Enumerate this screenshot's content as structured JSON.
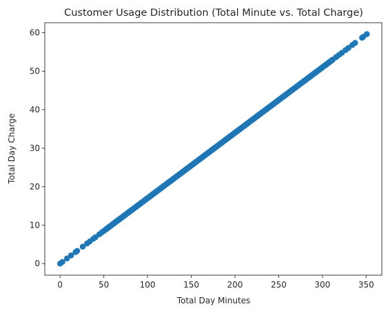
{
  "chart_data": {
    "type": "scatter",
    "title": "Customer Usage Distribution (Total Minute vs. Total Charge)",
    "xlabel": "Total Day Minutes",
    "ylabel": "Total Day Charge",
    "xlim": [
      -17.5,
      367.9
    ],
    "ylim": [
      -3.0,
      62.6
    ],
    "xticks": [
      0,
      50,
      100,
      150,
      200,
      250,
      300,
      350
    ],
    "yticks": [
      0,
      10,
      20,
      30,
      40,
      50,
      60
    ],
    "grid": false,
    "color": "#1f77b4",
    "slope": 0.17,
    "x_range": [
      0.0,
      350.8
    ],
    "sparse_points": [
      {
        "x": 0.0,
        "y": 0.0
      },
      {
        "x": 2.6,
        "y": 0.44
      },
      {
        "x": 7.9,
        "y": 1.34
      },
      {
        "x": 12.5,
        "y": 2.13
      },
      {
        "x": 17.6,
        "y": 2.99
      },
      {
        "x": 19.5,
        "y": 3.32
      },
      {
        "x": 25.9,
        "y": 4.4
      },
      {
        "x": 30.9,
        "y": 5.25
      },
      {
        "x": 34.0,
        "y": 5.78
      },
      {
        "x": 37.8,
        "y": 6.43
      },
      {
        "x": 40.4,
        "y": 6.87
      },
      {
        "x": 44.9,
        "y": 7.63
      },
      {
        "x": 47.8,
        "y": 8.13
      },
      {
        "x": 49.9,
        "y": 8.48
      },
      {
        "x": 315.6,
        "y": 53.65
      },
      {
        "x": 319.0,
        "y": 54.23
      },
      {
        "x": 322.3,
        "y": 54.79
      },
      {
        "x": 326.5,
        "y": 55.51
      },
      {
        "x": 329.8,
        "y": 56.07
      },
      {
        "x": 334.3,
        "y": 56.83
      },
      {
        "x": 337.4,
        "y": 57.36
      },
      {
        "x": 345.3,
        "y": 58.7
      },
      {
        "x": 346.8,
        "y": 58.96
      },
      {
        "x": 350.8,
        "y": 59.64
      }
    ],
    "dense_range": [
      52,
      312
    ]
  }
}
